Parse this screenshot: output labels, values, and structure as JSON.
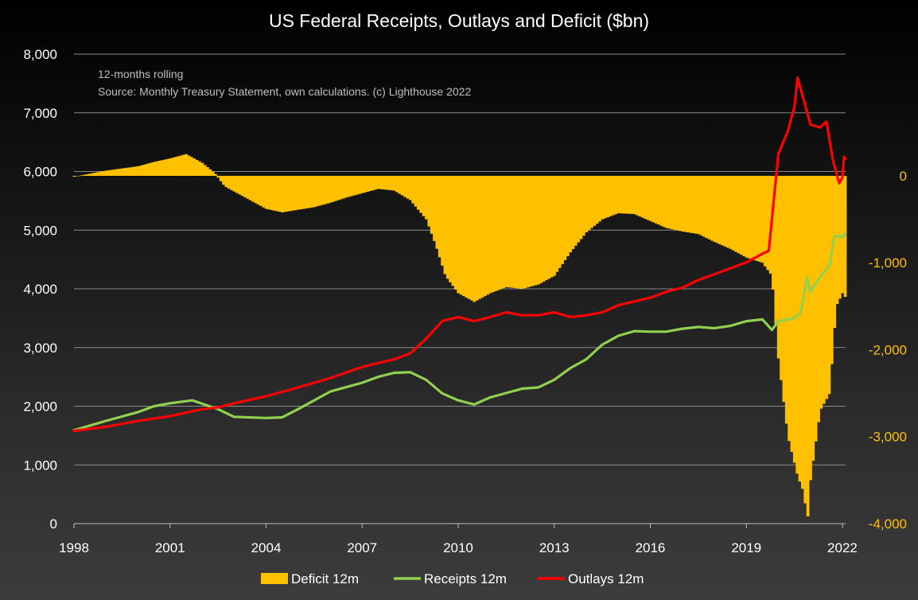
{
  "chart_data": {
    "type": "bar+line",
    "title": "US Federal Receipts, Outlays and Deficit ($bn)",
    "annotations": [
      "12-months rolling",
      "Source: Monthly Treasury Statement, own calculations. (c) Lighthouse 2022"
    ],
    "x_axis": {
      "ticks": [
        "1998",
        "2001",
        "2004",
        "2007",
        "2010",
        "2013",
        "2016",
        "2019",
        "2022"
      ],
      "xlim": [
        1998,
        2022.1
      ]
    },
    "y_axis_left": {
      "ticks": [
        "0",
        "1,000",
        "2,000",
        "3,000",
        "4,000",
        "5,000",
        "6,000",
        "7,000",
        "8,000"
      ],
      "ylim": [
        0,
        8000
      ]
    },
    "y_axis_right": {
      "ticks": [
        "-4,000",
        "-3,000",
        "-2,000",
        "-1,000",
        "0"
      ],
      "ylim": [
        -4000,
        1400
      ]
    },
    "grid": "horizontal",
    "legend_position": "bottom",
    "series": [
      {
        "name": "Deficit 12m",
        "kind": "bar",
        "axis": "right",
        "color": "#ffc000",
        "points": [
          [
            1998,
            -10
          ],
          [
            1999,
            60
          ],
          [
            2000,
            110
          ],
          [
            2000.5,
            160
          ],
          [
            2001,
            200
          ],
          [
            2001.5,
            250
          ],
          [
            2002,
            150
          ],
          [
            2002.4,
            30
          ],
          [
            2002.7,
            -120
          ],
          [
            2003,
            -180
          ],
          [
            2003.5,
            -280
          ],
          [
            2004,
            -380
          ],
          [
            2004.5,
            -420
          ],
          [
            2005,
            -390
          ],
          [
            2005.5,
            -360
          ],
          [
            2006,
            -310
          ],
          [
            2006.5,
            -250
          ],
          [
            2007,
            -200
          ],
          [
            2007.5,
            -150
          ],
          [
            2008,
            -170
          ],
          [
            2008.5,
            -280
          ],
          [
            2009,
            -500
          ],
          [
            2009.3,
            -800
          ],
          [
            2009.6,
            -1150
          ],
          [
            2010,
            -1350
          ],
          [
            2010.5,
            -1450
          ],
          [
            2011,
            -1350
          ],
          [
            2011.5,
            -1280
          ],
          [
            2012,
            -1300
          ],
          [
            2012.5,
            -1250
          ],
          [
            2013,
            -1150
          ],
          [
            2013.5,
            -880
          ],
          [
            2014,
            -650
          ],
          [
            2014.5,
            -500
          ],
          [
            2015,
            -430
          ],
          [
            2015.5,
            -440
          ],
          [
            2016,
            -520
          ],
          [
            2016.5,
            -600
          ],
          [
            2017,
            -640
          ],
          [
            2017.5,
            -670
          ],
          [
            2018,
            -760
          ],
          [
            2018.5,
            -840
          ],
          [
            2019,
            -940
          ],
          [
            2019.5,
            -1000
          ],
          [
            2019.8,
            -1150
          ],
          [
            2020,
            -2100
          ],
          [
            2020.3,
            -3000
          ],
          [
            2020.6,
            -3450
          ],
          [
            2020.8,
            -3650
          ],
          [
            2020.9,
            -4000
          ],
          [
            2021,
            -3500
          ],
          [
            2021.3,
            -2700
          ],
          [
            2021.6,
            -2500
          ],
          [
            2021.8,
            -1500
          ],
          [
            2022,
            -1350
          ],
          [
            2022.1,
            -1400
          ]
        ]
      },
      {
        "name": "Receipts 12m",
        "kind": "line",
        "axis": "left",
        "color": "#92d050",
        "points": [
          [
            1998,
            1590
          ],
          [
            1999,
            1750
          ],
          [
            2000,
            1900
          ],
          [
            2000.5,
            2000
          ],
          [
            2001,
            2050
          ],
          [
            2001.7,
            2100
          ],
          [
            2002.5,
            1950
          ],
          [
            2003,
            1820
          ],
          [
            2004,
            1800
          ],
          [
            2004.5,
            1810
          ],
          [
            2005,
            1950
          ],
          [
            2005.5,
            2100
          ],
          [
            2006,
            2250
          ],
          [
            2007,
            2400
          ],
          [
            2007.5,
            2500
          ],
          [
            2008,
            2570
          ],
          [
            2008.5,
            2580
          ],
          [
            2009,
            2450
          ],
          [
            2009.5,
            2220
          ],
          [
            2010,
            2100
          ],
          [
            2010.5,
            2030
          ],
          [
            2011,
            2150
          ],
          [
            2012,
            2300
          ],
          [
            2012.5,
            2320
          ],
          [
            2013,
            2450
          ],
          [
            2013.5,
            2650
          ],
          [
            2014,
            2800
          ],
          [
            2014.5,
            3050
          ],
          [
            2015,
            3200
          ],
          [
            2015.5,
            3280
          ],
          [
            2016,
            3270
          ],
          [
            2016.5,
            3270
          ],
          [
            2017,
            3320
          ],
          [
            2017.5,
            3350
          ],
          [
            2018,
            3330
          ],
          [
            2018.5,
            3370
          ],
          [
            2019,
            3450
          ],
          [
            2019.5,
            3480
          ],
          [
            2019.8,
            3300
          ],
          [
            2020,
            3450
          ],
          [
            2020.5,
            3500
          ],
          [
            2020.7,
            3600
          ],
          [
            2020.9,
            4200
          ],
          [
            2021,
            3950
          ],
          [
            2021.3,
            4200
          ],
          [
            2021.6,
            4400
          ],
          [
            2021.75,
            4900
          ],
          [
            2022,
            4880
          ],
          [
            2022.1,
            4940
          ]
        ]
      },
      {
        "name": "Outlays 12m",
        "kind": "line",
        "axis": "left",
        "color": "#ff0000",
        "points": [
          [
            1998,
            1580
          ],
          [
            1999,
            1650
          ],
          [
            2000,
            1750
          ],
          [
            2001,
            1830
          ],
          [
            2002,
            1950
          ],
          [
            2002.5,
            1980
          ],
          [
            2003,
            2050
          ],
          [
            2004,
            2170
          ],
          [
            2005,
            2320
          ],
          [
            2006,
            2480
          ],
          [
            2007,
            2670
          ],
          [
            2008,
            2800
          ],
          [
            2008.5,
            2900
          ],
          [
            2009,
            3150
          ],
          [
            2009.5,
            3450
          ],
          [
            2010,
            3520
          ],
          [
            2010.5,
            3450
          ],
          [
            2011,
            3520
          ],
          [
            2011.5,
            3600
          ],
          [
            2012,
            3550
          ],
          [
            2012.5,
            3550
          ],
          [
            2013,
            3600
          ],
          [
            2013.5,
            3520
          ],
          [
            2014,
            3550
          ],
          [
            2014.5,
            3600
          ],
          [
            2015,
            3720
          ],
          [
            2016,
            3850
          ],
          [
            2016.5,
            3950
          ],
          [
            2017,
            4020
          ],
          [
            2017.5,
            4150
          ],
          [
            2018,
            4250
          ],
          [
            2018.5,
            4350
          ],
          [
            2019,
            4450
          ],
          [
            2019.5,
            4600
          ],
          [
            2019.7,
            4650
          ],
          [
            2019.8,
            5200
          ],
          [
            2020,
            6300
          ],
          [
            2020.3,
            6700
          ],
          [
            2020.5,
            7100
          ],
          [
            2020.6,
            7600
          ],
          [
            2020.8,
            7200
          ],
          [
            2021,
            6800
          ],
          [
            2021.3,
            6750
          ],
          [
            2021.5,
            6850
          ],
          [
            2021.7,
            6200
          ],
          [
            2021.9,
            5800
          ],
          [
            2022,
            5900
          ],
          [
            2022.05,
            6250
          ],
          [
            2022.1,
            6220
          ]
        ]
      }
    ]
  }
}
